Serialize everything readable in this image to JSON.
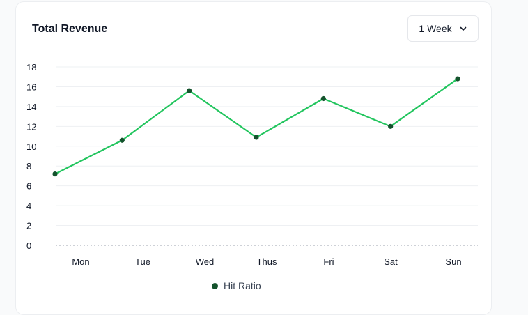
{
  "card": {
    "title": "Total Revenue",
    "range_select": {
      "value": "1 Week",
      "icon": "chevron-down-icon"
    }
  },
  "colors": {
    "line": "#22c55e",
    "marker": "#14532d",
    "grid": "#eef0f3",
    "baseline": "#9ca3af"
  },
  "chart_data": {
    "type": "line",
    "categories": [
      "Mon",
      "Tue",
      "Wed",
      "Thus",
      "Fri",
      "Sat",
      "Sun"
    ],
    "series": [
      {
        "name": "Hit Ratio",
        "values": [
          7.2,
          10.6,
          15.6,
          10.9,
          14.8,
          12.0,
          16.8
        ]
      }
    ],
    "yticks": [
      "0",
      "2",
      "4",
      "6",
      "8",
      "10",
      "12",
      "14",
      "16",
      "18"
    ],
    "ylim": [
      0,
      18
    ],
    "grid": true,
    "legend": "bottom-center"
  }
}
